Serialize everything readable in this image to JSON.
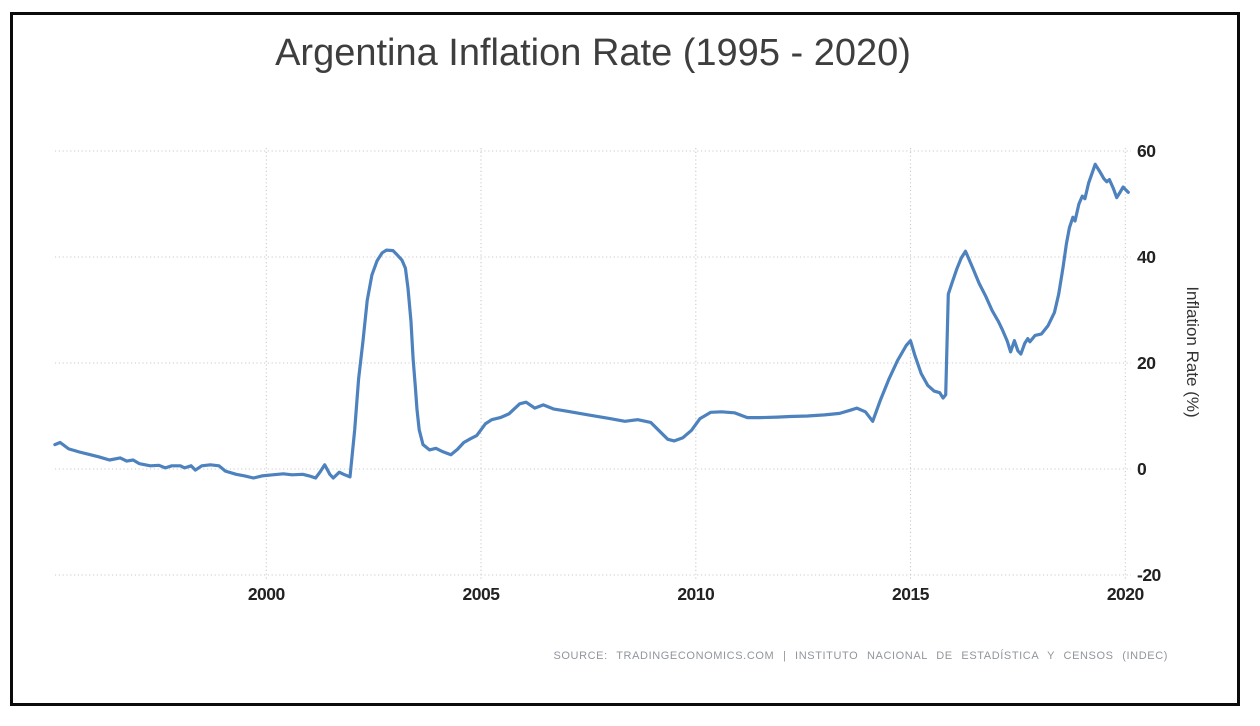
{
  "title": "Argentina Inflation Rate (1995 - 2020)",
  "source_text": "SOURCE: TRADINGECONOMICS.COM | INSTITUTO NACIONAL DE ESTADÍSTICA Y CENSOS (INDEC)",
  "colors": {
    "background": "#ffffff",
    "frame_border": "#0b0b0b",
    "title_text": "#3e3e3e",
    "grid": "#cbcbcb",
    "tick_text": "#222222",
    "axis_title_text": "#333333",
    "source_text_color": "#91969c",
    "line": "#4d82be"
  },
  "chart_data": {
    "type": "line",
    "title": "Argentina Inflation Rate (1995 - 2020)",
    "xlabel": "",
    "ylabel": "Inflation Rate (%)",
    "xlim": [
      1995,
      2020.3
    ],
    "ylim": [
      -20,
      60
    ],
    "x_ticks": [
      2000,
      2005,
      2010,
      2015,
      2020
    ],
    "y_ticks": [
      -20,
      0,
      20,
      40,
      60
    ],
    "grid": "dotted",
    "legend": "none",
    "line_color": "#4d82be",
    "series": [
      {
        "name": "Inflation Rate (%)",
        "points": [
          [
            1995.08,
            4.6
          ],
          [
            1995.2,
            5.0
          ],
          [
            1995.4,
            3.8
          ],
          [
            1995.65,
            3.2
          ],
          [
            1995.9,
            2.7
          ],
          [
            1996.1,
            2.3
          ],
          [
            1996.35,
            1.7
          ],
          [
            1996.6,
            2.1
          ],
          [
            1996.75,
            1.5
          ],
          [
            1996.9,
            1.7
          ],
          [
            1997.05,
            1.0
          ],
          [
            1997.3,
            0.6
          ],
          [
            1997.5,
            0.7
          ],
          [
            1997.65,
            0.2
          ],
          [
            1997.8,
            0.6
          ],
          [
            1998.0,
            0.6
          ],
          [
            1998.1,
            0.2
          ],
          [
            1998.25,
            0.6
          ],
          [
            1998.35,
            -0.2
          ],
          [
            1998.5,
            0.6
          ],
          [
            1998.7,
            0.8
          ],
          [
            1998.9,
            0.6
          ],
          [
            1999.05,
            -0.4
          ],
          [
            1999.3,
            -1.0
          ],
          [
            1999.5,
            -1.3
          ],
          [
            1999.7,
            -1.7
          ],
          [
            1999.9,
            -1.3
          ],
          [
            2000.15,
            -1.1
          ],
          [
            2000.4,
            -0.9
          ],
          [
            2000.6,
            -1.1
          ],
          [
            2000.85,
            -1.0
          ],
          [
            2001.0,
            -1.3
          ],
          [
            2001.15,
            -1.7
          ],
          [
            2001.25,
            -0.6
          ],
          [
            2001.36,
            0.8
          ],
          [
            2001.48,
            -1.0
          ],
          [
            2001.56,
            -1.7
          ],
          [
            2001.7,
            -0.6
          ],
          [
            2001.8,
            -1.0
          ],
          [
            2001.95,
            -1.5
          ],
          [
            2002.06,
            7.4
          ],
          [
            2002.15,
            17.0
          ],
          [
            2002.25,
            24.0
          ],
          [
            2002.35,
            31.8
          ],
          [
            2002.46,
            36.6
          ],
          [
            2002.58,
            39.3
          ],
          [
            2002.7,
            40.8
          ],
          [
            2002.8,
            41.3
          ],
          [
            2002.95,
            41.2
          ],
          [
            2003.05,
            40.4
          ],
          [
            2003.16,
            39.4
          ],
          [
            2003.24,
            37.9
          ],
          [
            2003.3,
            34.1
          ],
          [
            2003.37,
            27.8
          ],
          [
            2003.42,
            20.8
          ],
          [
            2003.47,
            15.6
          ],
          [
            2003.51,
            11.2
          ],
          [
            2003.56,
            7.4
          ],
          [
            2003.65,
            4.6
          ],
          [
            2003.8,
            3.6
          ],
          [
            2003.95,
            3.9
          ],
          [
            2004.1,
            3.3
          ],
          [
            2004.3,
            2.7
          ],
          [
            2004.45,
            3.7
          ],
          [
            2004.6,
            5.0
          ],
          [
            2004.75,
            5.7
          ],
          [
            2004.9,
            6.3
          ],
          [
            2005.1,
            8.5
          ],
          [
            2005.25,
            9.3
          ],
          [
            2005.45,
            9.7
          ],
          [
            2005.65,
            10.4
          ],
          [
            2005.9,
            12.3
          ],
          [
            2006.05,
            12.6
          ],
          [
            2006.25,
            11.5
          ],
          [
            2006.45,
            12.1
          ],
          [
            2006.7,
            11.3
          ],
          [
            2007.0,
            10.9
          ],
          [
            2007.5,
            10.2
          ],
          [
            2008.0,
            9.5
          ],
          [
            2008.35,
            9.0
          ],
          [
            2008.65,
            9.3
          ],
          [
            2008.95,
            8.8
          ],
          [
            2009.15,
            7.2
          ],
          [
            2009.35,
            5.6
          ],
          [
            2009.5,
            5.3
          ],
          [
            2009.7,
            5.9
          ],
          [
            2009.9,
            7.3
          ],
          [
            2010.1,
            9.5
          ],
          [
            2010.35,
            10.7
          ],
          [
            2010.6,
            10.8
          ],
          [
            2010.9,
            10.6
          ],
          [
            2011.2,
            9.7
          ],
          [
            2011.5,
            9.7
          ],
          [
            2011.9,
            9.8
          ],
          [
            2012.2,
            9.9
          ],
          [
            2012.6,
            10.0
          ],
          [
            2013.0,
            10.2
          ],
          [
            2013.35,
            10.5
          ],
          [
            2013.6,
            11.1
          ],
          [
            2013.75,
            11.5
          ],
          [
            2013.95,
            10.8
          ],
          [
            2014.12,
            9.0
          ],
          [
            2014.3,
            13.0
          ],
          [
            2014.5,
            17.0
          ],
          [
            2014.7,
            20.5
          ],
          [
            2014.9,
            23.3
          ],
          [
            2015.0,
            24.2
          ],
          [
            2015.1,
            21.5
          ],
          [
            2015.25,
            18.0
          ],
          [
            2015.4,
            15.8
          ],
          [
            2015.55,
            14.7
          ],
          [
            2015.68,
            14.4
          ],
          [
            2015.76,
            13.4
          ],
          [
            2015.82,
            14.0
          ],
          [
            2015.88,
            33.0
          ],
          [
            2015.97,
            35.2
          ],
          [
            2016.08,
            37.8
          ],
          [
            2016.18,
            39.8
          ],
          [
            2016.28,
            41.1
          ],
          [
            2016.45,
            37.9
          ],
          [
            2016.6,
            35.0
          ],
          [
            2016.75,
            32.6
          ],
          [
            2016.9,
            29.9
          ],
          [
            2017.05,
            27.8
          ],
          [
            2017.15,
            26.1
          ],
          [
            2017.25,
            24.2
          ],
          [
            2017.33,
            22.1
          ],
          [
            2017.42,
            24.2
          ],
          [
            2017.5,
            22.3
          ],
          [
            2017.57,
            21.7
          ],
          [
            2017.66,
            23.7
          ],
          [
            2017.73,
            24.6
          ],
          [
            2017.78,
            24.0
          ],
          [
            2017.9,
            25.2
          ],
          [
            2018.05,
            25.5
          ],
          [
            2018.2,
            27.0
          ],
          [
            2018.35,
            29.5
          ],
          [
            2018.45,
            33.0
          ],
          [
            2018.55,
            38.0
          ],
          [
            2018.63,
            42.5
          ],
          [
            2018.7,
            45.5
          ],
          [
            2018.78,
            47.5
          ],
          [
            2018.83,
            46.8
          ],
          [
            2018.92,
            50.0
          ],
          [
            2019.0,
            51.5
          ],
          [
            2019.06,
            51.0
          ],
          [
            2019.15,
            54.0
          ],
          [
            2019.3,
            57.5
          ],
          [
            2019.4,
            56.2
          ],
          [
            2019.5,
            54.8
          ],
          [
            2019.57,
            54.2
          ],
          [
            2019.63,
            54.6
          ],
          [
            2019.72,
            53.0
          ],
          [
            2019.8,
            51.2
          ],
          [
            2019.87,
            52.1
          ],
          [
            2019.95,
            53.2
          ],
          [
            2020.02,
            52.6
          ],
          [
            2020.07,
            52.2
          ]
        ]
      }
    ]
  }
}
